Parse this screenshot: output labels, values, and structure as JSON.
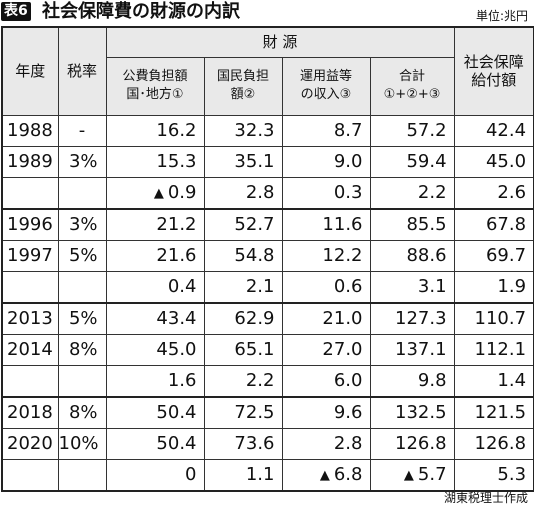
{
  "badge": "表6",
  "title": "社会保障費の財源の内訳",
  "unit": "単位:兆円",
  "headers": {
    "year": "年度",
    "rate": "税率",
    "zaigen": "財 源",
    "c1a": "公費負担額",
    "c1b": "国･地方①",
    "c2a": "国民負担",
    "c2b": "額②",
    "c3a": "運用益等",
    "c3b": "の収入③",
    "c4a": "合計",
    "c4b": "①+②+③",
    "c5a": "社会保障",
    "c5b": "給付額"
  },
  "rows": [
    {
      "year": "1988",
      "rate": "-",
      "c1": "16.2",
      "c2": "32.3",
      "c3": "8.7",
      "c4": "57.2",
      "c5": "42.4"
    },
    {
      "year": "1989",
      "rate": "3%",
      "c1": "15.3",
      "c2": "35.1",
      "c3": "9.0",
      "c4": "59.4",
      "c5": "45.0"
    },
    {
      "year": "",
      "rate": "",
      "c1": "▲ 0.9",
      "c2": "2.8",
      "c3": "0.3",
      "c4": "2.2",
      "c5": "2.6"
    },
    {
      "year": "1996",
      "rate": "3%",
      "c1": "21.2",
      "c2": "52.7",
      "c3": "11.6",
      "c4": "85.5",
      "c5": "67.8"
    },
    {
      "year": "1997",
      "rate": "5%",
      "c1": "21.6",
      "c2": "54.8",
      "c3": "12.2",
      "c4": "88.6",
      "c5": "69.7"
    },
    {
      "year": "",
      "rate": "",
      "c1": "0.4",
      "c2": "2.1",
      "c3": "0.6",
      "c4": "3.1",
      "c5": "1.9"
    },
    {
      "year": "2013",
      "rate": "5%",
      "c1": "43.4",
      "c2": "62.9",
      "c3": "21.0",
      "c4": "127.3",
      "c5": "110.7"
    },
    {
      "year": "2014",
      "rate": "8%",
      "c1": "45.0",
      "c2": "65.1",
      "c3": "27.0",
      "c4": "137.1",
      "c5": "112.1"
    },
    {
      "year": "",
      "rate": "",
      "c1": "1.6",
      "c2": "2.2",
      "c3": "6.0",
      "c4": "9.8",
      "c5": "1.4"
    },
    {
      "year": "2018",
      "rate": "8%",
      "c1": "50.4",
      "c2": "72.5",
      "c3": "9.6",
      "c4": "132.5",
      "c5": "121.5"
    },
    {
      "year": "2020",
      "rate": "10%",
      "c1": "50.4",
      "c2": "73.6",
      "c3": "2.8",
      "c4": "126.8",
      "c5": "126.8"
    },
    {
      "year": "",
      "rate": "",
      "c1": "0",
      "c2": "1.1",
      "c3": "▲ 6.8",
      "c4": "▲ 5.7",
      "c5": "5.3"
    }
  ],
  "credit": "湖東税理士作成"
}
